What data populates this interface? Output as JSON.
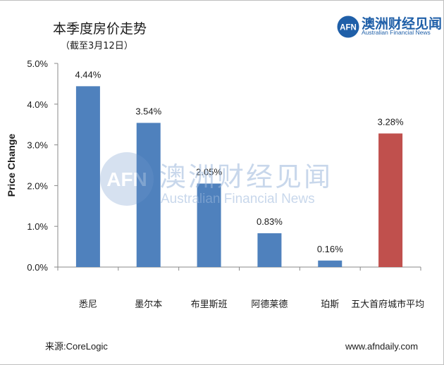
{
  "header": {
    "title": "本季度房价走势",
    "subtitle": "（截至3月12日）"
  },
  "brand": {
    "mark_text": "AFN",
    "name_cn": "澳洲财经见闻",
    "name_en": "Australian Financial News"
  },
  "watermark": {
    "mark_text": "AFN",
    "name_cn": "澳洲财经见闻",
    "name_en": "Australian Financial News"
  },
  "footer": {
    "source": "来源:CoreLogic",
    "website": "www.afndaily.com"
  },
  "colors": {
    "bar_default": "#4f81bd",
    "bar_highlight": "#c0504d",
    "brand": "#1f5fa8"
  },
  "chart_data": {
    "type": "bar",
    "categories": [
      "悉尼",
      "墨尔本",
      "布里斯班",
      "阿德莱德",
      "珀斯",
      "五大首府城市平均"
    ],
    "values": [
      4.44,
      3.54,
      2.05,
      0.83,
      0.16,
      3.28
    ],
    "data_labels": [
      "4.44%",
      "3.54%",
      "2.05%",
      "0.83%",
      "0.16%",
      "3.28%"
    ],
    "highlight": [
      false,
      false,
      false,
      false,
      false,
      true
    ],
    "title": "本季度房价走势",
    "subtitle": "（截至3月12日）",
    "xlabel": "",
    "ylabel": "Price Change",
    "ylim": [
      0,
      5
    ],
    "yticks": [
      "0.0%",
      "1.0%",
      "2.0%",
      "3.0%",
      "4.0%",
      "5.0%"
    ],
    "grid": false,
    "legend": "none"
  }
}
